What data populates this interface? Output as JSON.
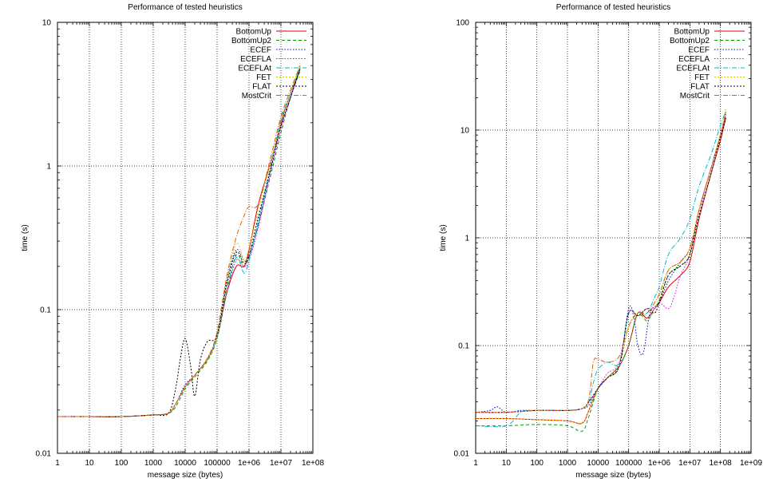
{
  "chart_data": [
    {
      "type": "line",
      "title": "Performance of tested heuristics",
      "xlabel": "message size (bytes)",
      "ylabel": "time (s)",
      "xscale": "log",
      "yscale": "log",
      "xlim": [
        1,
        100000000
      ],
      "ylim": [
        0.01,
        10
      ],
      "grid": true,
      "legend_position": "top-right",
      "xticks": [
        {
          "v": 1,
          "label": "1"
        },
        {
          "v": 10,
          "label": "10"
        },
        {
          "v": 100,
          "label": "100"
        },
        {
          "v": 1000,
          "label": "1000"
        },
        {
          "v": 10000,
          "label": "10000"
        },
        {
          "v": 100000,
          "label": "100000"
        },
        {
          "v": 1000000,
          "label": "1e+06"
        },
        {
          "v": 10000000,
          "label": "1e+07"
        },
        {
          "v": 100000000,
          "label": "1e+08"
        }
      ],
      "yticks": [
        {
          "v": 0.01,
          "label": "0.01"
        },
        {
          "v": 0.1,
          "label": "0.1"
        },
        {
          "v": 1,
          "label": "1"
        },
        {
          "v": 10,
          "label": "10"
        }
      ],
      "series": [
        {
          "name": "BottomUp",
          "color": "#e00000",
          "dash": "",
          "x": [
            1,
            10,
            100,
            1000,
            3000,
            5000,
            10000,
            20000,
            50000,
            100000,
            200000,
            400000,
            700000,
            1000000,
            2000000,
            5000000,
            10000000,
            20000000,
            40000000
          ],
          "y": [
            0.018,
            0.018,
            0.018,
            0.0185,
            0.019,
            0.022,
            0.029,
            0.035,
            0.045,
            0.065,
            0.13,
            0.2,
            0.2,
            0.26,
            0.55,
            1.1,
            2.0,
            3.2,
            4.7
          ]
        },
        {
          "name": "BottomUp2",
          "color": "#00a000",
          "dash": "4,3",
          "x": [
            1,
            10,
            100,
            1000,
            3000,
            5000,
            10000,
            20000,
            50000,
            100000,
            200000,
            400000,
            700000,
            1000000,
            2000000,
            5000000,
            10000000,
            20000000,
            40000000
          ],
          "y": [
            0.018,
            0.018,
            0.018,
            0.0185,
            0.019,
            0.021,
            0.028,
            0.034,
            0.044,
            0.063,
            0.13,
            0.24,
            0.2,
            0.24,
            0.4,
            0.9,
            1.7,
            3.0,
            4.6
          ]
        },
        {
          "name": "ECEF",
          "color": "#0000d0",
          "dash": "1.5,2",
          "x": [
            1,
            10,
            100,
            1000,
            3000,
            5000,
            10000,
            20000,
            50000,
            100000,
            200000,
            400000,
            700000,
            1000000,
            2000000,
            5000000,
            10000000,
            20000000,
            40000000
          ],
          "y": [
            0.018,
            0.018,
            0.018,
            0.0185,
            0.019,
            0.022,
            0.03,
            0.035,
            0.046,
            0.066,
            0.16,
            0.26,
            0.22,
            0.23,
            0.4,
            1.0,
            1.9,
            3.0,
            4.8
          ]
        },
        {
          "name": "ECEFLA",
          "color": "#e000e0",
          "dash": "1.5,2",
          "x": [
            1,
            10,
            100,
            1000,
            3000,
            5000,
            10000,
            20000,
            50000,
            100000,
            200000,
            400000,
            700000,
            1000000,
            2000000,
            5000000,
            10000000,
            20000000,
            40000000
          ],
          "y": [
            0.018,
            0.018,
            0.018,
            0.0185,
            0.019,
            0.022,
            0.029,
            0.035,
            0.045,
            0.064,
            0.13,
            0.22,
            0.2,
            0.22,
            0.38,
            0.95,
            1.8,
            3.0,
            4.9
          ]
        },
        {
          "name": "ECEFLAt",
          "color": "#00b8d0",
          "dash": "6,2,1,2",
          "x": [
            1,
            10,
            100,
            1000,
            3000,
            5000,
            10000,
            20000,
            50000,
            100000,
            200000,
            400000,
            700000,
            1000000,
            2000000,
            5000000,
            10000000,
            20000000,
            40000000
          ],
          "y": [
            0.018,
            0.018,
            0.018,
            0.0185,
            0.019,
            0.022,
            0.029,
            0.035,
            0.045,
            0.065,
            0.14,
            0.23,
            0.18,
            0.22,
            0.42,
            1.05,
            2.1,
            3.2,
            4.9
          ]
        },
        {
          "name": "FET",
          "color": "#d8c800",
          "dash": "2,2",
          "x": [
            1,
            10,
            100,
            1000,
            3000,
            5000,
            10000,
            20000,
            50000,
            100000,
            200000,
            400000,
            700000,
            1000000,
            2000000,
            5000000,
            10000000,
            20000000,
            40000000
          ],
          "y": [
            0.018,
            0.018,
            0.018,
            0.0185,
            0.019,
            0.022,
            0.029,
            0.035,
            0.045,
            0.065,
            0.15,
            0.29,
            0.22,
            0.27,
            0.5,
            1.1,
            2.0,
            3.2,
            5.2
          ]
        },
        {
          "name": "FLAT",
          "color": "#000000",
          "dash": "2,2",
          "x": [
            1,
            10,
            100,
            1000,
            3000,
            5000,
            7000,
            10000,
            15000,
            20000,
            30000,
            50000,
            100000,
            200000,
            400000,
            700000,
            1000000,
            2000000,
            5000000,
            10000000,
            20000000,
            40000000
          ],
          "y": [
            0.018,
            0.018,
            0.018,
            0.0185,
            0.019,
            0.028,
            0.045,
            0.063,
            0.04,
            0.025,
            0.045,
            0.06,
            0.066,
            0.15,
            0.25,
            0.21,
            0.24,
            0.45,
            1.0,
            1.9,
            3.0,
            4.8
          ]
        },
        {
          "name": "MostCrit",
          "color": "#e06000",
          "dash": "6,2,1,2",
          "x": [
            1,
            10,
            100,
            1000,
            3000,
            5000,
            10000,
            20000,
            50000,
            100000,
            200000,
            400000,
            700000,
            1000000,
            2000000,
            5000000,
            10000000,
            20000000,
            40000000
          ],
          "y": [
            0.018,
            0.018,
            0.018,
            0.0185,
            0.019,
            0.022,
            0.029,
            0.035,
            0.046,
            0.07,
            0.17,
            0.32,
            0.45,
            0.52,
            0.55,
            1.2,
            2.2,
            3.4,
            5.0
          ]
        }
      ]
    },
    {
      "type": "line",
      "title": "Performance of tested heuristics",
      "xlabel": "message size (bytes)",
      "ylabel": "time (s)",
      "xscale": "log",
      "yscale": "log",
      "xlim": [
        1,
        1000000000
      ],
      "ylim": [
        0.01,
        100
      ],
      "grid": true,
      "legend_position": "top-right",
      "xticks": [
        {
          "v": 1,
          "label": "1"
        },
        {
          "v": 10,
          "label": "10"
        },
        {
          "v": 100,
          "label": "100"
        },
        {
          "v": 1000,
          "label": "1000"
        },
        {
          "v": 10000,
          "label": "10000"
        },
        {
          "v": 100000,
          "label": "100000"
        },
        {
          "v": 1000000,
          "label": "1e+06"
        },
        {
          "v": 10000000,
          "label": "1e+07"
        },
        {
          "v": 100000000,
          "label": "1e+08"
        },
        {
          "v": 1000000000,
          "label": "1e+09"
        }
      ],
      "yticks": [
        {
          "v": 0.01,
          "label": "0.01"
        },
        {
          "v": 0.1,
          "label": "0.1"
        },
        {
          "v": 1,
          "label": "1"
        },
        {
          "v": 10,
          "label": "10"
        },
        {
          "v": 100,
          "label": "100"
        }
      ],
      "series": [
        {
          "name": "BottomUp",
          "color": "#e00000",
          "dash": "",
          "x": [
            1,
            10,
            100,
            1000,
            3000,
            5000,
            10000,
            20000,
            50000,
            100000,
            200000,
            400000,
            700000,
            1000000,
            2000000,
            5000000,
            10000000,
            20000000,
            50000000,
            100000000,
            150000000
          ],
          "y": [
            0.021,
            0.021,
            0.0205,
            0.02,
            0.019,
            0.025,
            0.04,
            0.05,
            0.065,
            0.1,
            0.2,
            0.18,
            0.22,
            0.25,
            0.35,
            0.45,
            0.6,
            1.5,
            4.0,
            8.0,
            13
          ]
        },
        {
          "name": "BottomUp2",
          "color": "#00a000",
          "dash": "4,3",
          "x": [
            1,
            10,
            100,
            1000,
            3000,
            5000,
            10000,
            20000,
            50000,
            100000,
            200000,
            400000,
            700000,
            1000000,
            2000000,
            5000000,
            10000000,
            20000000,
            50000000,
            100000000,
            150000000
          ],
          "y": [
            0.018,
            0.018,
            0.0185,
            0.018,
            0.016,
            0.022,
            0.04,
            0.05,
            0.065,
            0.1,
            0.2,
            0.17,
            0.22,
            0.26,
            0.45,
            0.55,
            0.7,
            1.8,
            4.5,
            9.0,
            15
          ]
        },
        {
          "name": "ECEF",
          "color": "#0000d0",
          "dash": "1.5,2",
          "x": [
            1,
            3,
            5,
            10,
            30,
            100,
            1000,
            3000,
            5000,
            10000,
            20000,
            50000,
            100000,
            150000,
            200000,
            300000,
            500000,
            1000000,
            2000000,
            5000000,
            10000000,
            20000000,
            50000000,
            100000000,
            150000000
          ],
          "y": [
            0.024,
            0.025,
            0.027,
            0.024,
            0.025,
            0.025,
            0.025,
            0.026,
            0.028,
            0.04,
            0.05,
            0.065,
            0.22,
            0.18,
            0.1,
            0.085,
            0.2,
            0.25,
            0.4,
            0.6,
            0.8,
            1.8,
            4.5,
            9,
            14
          ]
        },
        {
          "name": "ECEFLA",
          "color": "#e000e0",
          "dash": "1.5,2",
          "x": [
            1,
            10,
            100,
            1000,
            3000,
            5000,
            10000,
            20000,
            50000,
            100000,
            200000,
            400000,
            700000,
            1000000,
            2000000,
            3000000,
            5000000,
            10000000,
            20000000,
            50000000,
            100000000,
            150000000
          ],
          "y": [
            0.024,
            0.024,
            0.025,
            0.025,
            0.026,
            0.03,
            0.04,
            0.055,
            0.07,
            0.2,
            0.19,
            0.22,
            0.22,
            0.25,
            0.22,
            0.28,
            0.45,
            0.7,
            1.8,
            4.5,
            9,
            14
          ]
        },
        {
          "name": "ECEFLAt",
          "color": "#00b8d0",
          "dash": "6,2,1,2",
          "x": [
            1,
            10,
            30,
            100,
            1000,
            3000,
            5000,
            7000,
            10000,
            20000,
            50000,
            100000,
            200000,
            400000,
            700000,
            1000000,
            2000000,
            5000000,
            10000000,
            20000000,
            50000000,
            100000000,
            150000000
          ],
          "y": [
            0.018,
            0.018,
            0.024,
            0.025,
            0.025,
            0.026,
            0.03,
            0.045,
            0.06,
            0.07,
            0.07,
            0.2,
            0.19,
            0.2,
            0.28,
            0.35,
            0.7,
            1.0,
            1.5,
            3.0,
            6.0,
            11,
            15
          ]
        },
        {
          "name": "FET",
          "color": "#d8c800",
          "dash": "2,2",
          "x": [
            1,
            10,
            100,
            1000,
            3000,
            5000,
            10000,
            20000,
            50000,
            100000,
            200000,
            400000,
            700000,
            1000000,
            2000000,
            5000000,
            10000000,
            20000000,
            50000000,
            100000000,
            150000000
          ],
          "y": [
            0.021,
            0.021,
            0.0205,
            0.02,
            0.019,
            0.025,
            0.04,
            0.05,
            0.065,
            0.15,
            0.2,
            0.17,
            0.22,
            0.28,
            0.5,
            0.6,
            0.8,
            1.8,
            4.5,
            9,
            16
          ]
        },
        {
          "name": "FLAT",
          "color": "#000000",
          "dash": "2,2",
          "x": [
            1,
            10,
            100,
            1000,
            3000,
            5000,
            10000,
            20000,
            50000,
            100000,
            200000,
            400000,
            700000,
            1000000,
            2000000,
            5000000,
            10000000,
            20000000,
            50000000,
            100000000,
            150000000
          ],
          "y": [
            0.024,
            0.024,
            0.025,
            0.025,
            0.026,
            0.03,
            0.04,
            0.05,
            0.065,
            0.2,
            0.19,
            0.22,
            0.2,
            0.25,
            0.45,
            0.55,
            0.7,
            1.6,
            4.0,
            8.5,
            13
          ]
        },
        {
          "name": "MostCrit",
          "color": "#e06000",
          "dash": "6,2,1,2",
          "x": [
            1,
            10,
            100,
            1000,
            3000,
            5000,
            7000,
            10000,
            20000,
            50000,
            100000,
            200000,
            400000,
            700000,
            1000000,
            2000000,
            5000000,
            10000000,
            20000000,
            50000000,
            100000000,
            150000000
          ],
          "y": [
            0.024,
            0.024,
            0.025,
            0.025,
            0.026,
            0.032,
            0.07,
            0.075,
            0.07,
            0.08,
            0.15,
            0.2,
            0.2,
            0.25,
            0.3,
            0.5,
            0.6,
            0.8,
            1.8,
            4.5,
            9,
            14
          ]
        }
      ]
    }
  ]
}
